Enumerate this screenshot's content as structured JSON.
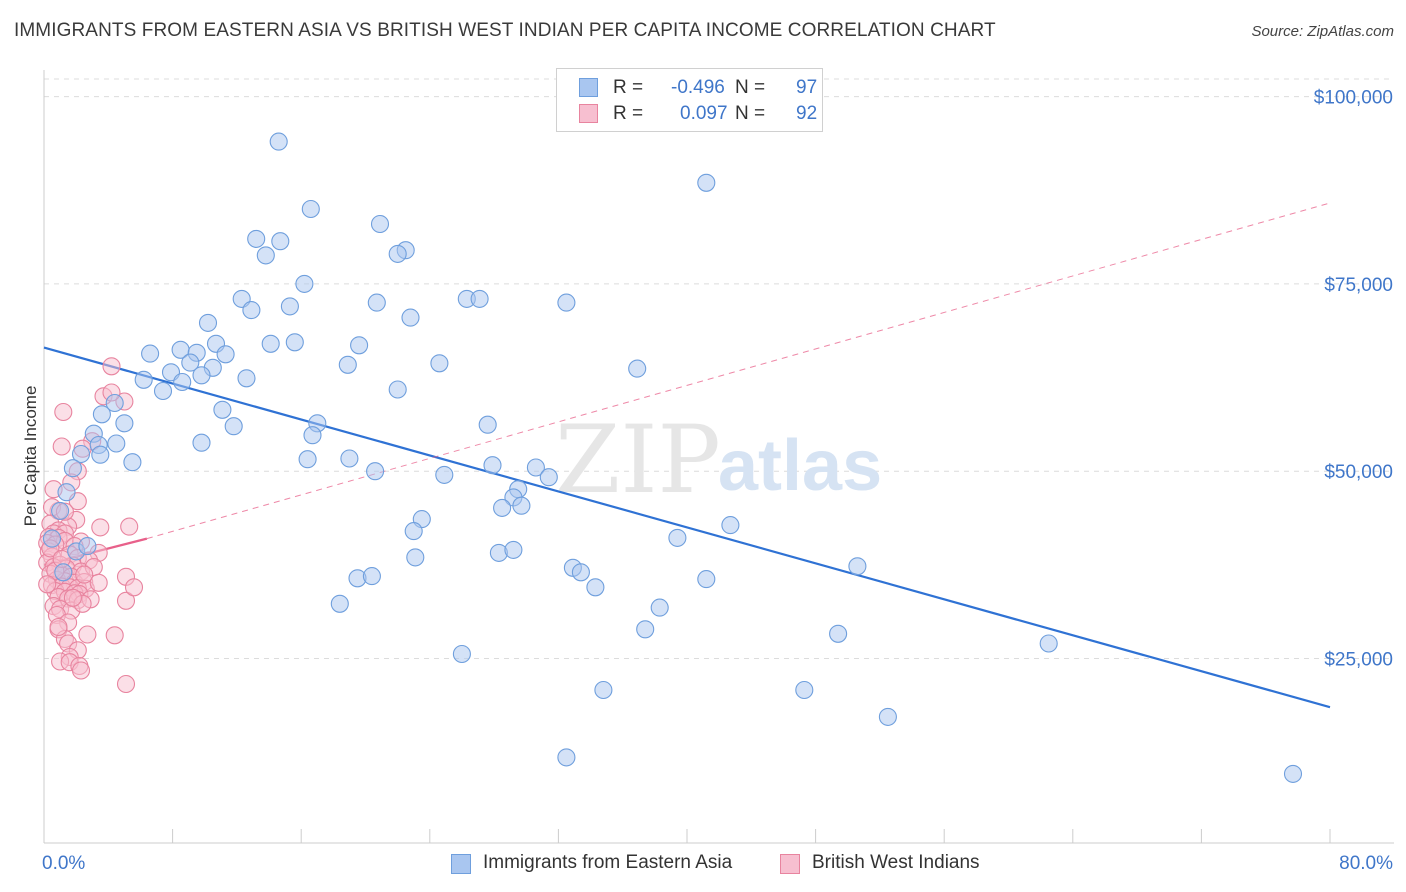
{
  "title": "IMMIGRANTS FROM EASTERN ASIA VS BRITISH WEST INDIAN PER CAPITA INCOME CORRELATION CHART",
  "source": "Source: ZipAtlas.com",
  "watermark": {
    "zip": "ZIP",
    "atlas": "atlas"
  },
  "legend": {
    "rows": [
      {
        "r_label": "R =",
        "r_value": "-0.496",
        "n_label": "N =",
        "n_value": "97",
        "color": "#a9c6f0",
        "border": "#6f9fdd"
      },
      {
        "r_label": "R =",
        "r_value": "0.097",
        "n_label": "N =",
        "n_value": "92",
        "color": "#f7bfd0",
        "border": "#e8849f"
      }
    ]
  },
  "bottom_legend": {
    "items": [
      {
        "label": "Immigrants from Eastern Asia",
        "color": "#a9c6f0",
        "border": "#6f9fdd"
      },
      {
        "label": "British West Indians",
        "color": "#f7bfd0",
        "border": "#e8849f"
      }
    ]
  },
  "chart_data": {
    "type": "scatter",
    "xlabel": "",
    "ylabel": "Per Capita Income",
    "xlim": [
      0,
      80
    ],
    "ylim": [
      0,
      105000
    ],
    "x_tick_labels": [
      "0.0%",
      "80.0%"
    ],
    "y_ticks": [
      {
        "value": 25000,
        "label": "$25,000"
      },
      {
        "value": 50000,
        "label": "$50,000"
      },
      {
        "value": 75000,
        "label": "$75,000"
      },
      {
        "value": 100000,
        "label": "$100,000"
      }
    ],
    "grid": true,
    "colors": {
      "blue_stroke": "#6f9fdd",
      "blue_fill": "#a9c6f0",
      "blue_line": "#2f72d4",
      "pink_stroke": "#e8849f",
      "pink_fill": "#f7bfd0",
      "pink_line": "#e8608a"
    },
    "series": [
      {
        "name": "Immigrants from Eastern Asia",
        "trend": {
          "x1": 0,
          "y1": 66500,
          "x2": 80,
          "y2": 18500,
          "style": "solid"
        },
        "points": [
          [
            14.6,
            94000
          ],
          [
            16.6,
            85000
          ],
          [
            41.2,
            88500
          ],
          [
            20.9,
            83000
          ],
          [
            13.2,
            81000
          ],
          [
            14.7,
            80700
          ],
          [
            22.5,
            79500
          ],
          [
            22.0,
            79000
          ],
          [
            13.8,
            78800
          ],
          [
            16.2,
            75000
          ],
          [
            12.3,
            73000
          ],
          [
            15.3,
            72000
          ],
          [
            20.7,
            72500
          ],
          [
            26.3,
            73000
          ],
          [
            27.1,
            73000
          ],
          [
            32.5,
            72500
          ],
          [
            12.9,
            71500
          ],
          [
            22.8,
            70500
          ],
          [
            10.2,
            69800
          ],
          [
            8.5,
            66200
          ],
          [
            10.7,
            67000
          ],
          [
            14.1,
            67000
          ],
          [
            15.6,
            67200
          ],
          [
            19.6,
            66800
          ],
          [
            6.6,
            65700
          ],
          [
            9.5,
            65800
          ],
          [
            11.3,
            65600
          ],
          [
            9.1,
            64500
          ],
          [
            10.5,
            63800
          ],
          [
            18.9,
            64200
          ],
          [
            24.6,
            64400
          ],
          [
            36.9,
            63700
          ],
          [
            7.9,
            63200
          ],
          [
            9.8,
            62800
          ],
          [
            6.2,
            62200
          ],
          [
            8.6,
            61900
          ],
          [
            12.6,
            62400
          ],
          [
            7.4,
            60700
          ],
          [
            22.0,
            60900
          ],
          [
            11.1,
            58200
          ],
          [
            4.4,
            59100
          ],
          [
            3.6,
            57600
          ],
          [
            5.0,
            56400
          ],
          [
            17.0,
            56400
          ],
          [
            27.6,
            56200
          ],
          [
            11.8,
            56000
          ],
          [
            3.1,
            55000
          ],
          [
            16.7,
            54800
          ],
          [
            4.5,
            53700
          ],
          [
            9.8,
            53800
          ],
          [
            3.4,
            53500
          ],
          [
            2.3,
            52300
          ],
          [
            3.5,
            52200
          ],
          [
            16.4,
            51600
          ],
          [
            5.5,
            51200
          ],
          [
            19.0,
            51700
          ],
          [
            1.8,
            50400
          ],
          [
            27.9,
            50800
          ],
          [
            30.6,
            50500
          ],
          [
            20.6,
            50000
          ],
          [
            24.9,
            49500
          ],
          [
            31.4,
            49200
          ],
          [
            29.5,
            47600
          ],
          [
            1.4,
            47200
          ],
          [
            29.2,
            46500
          ],
          [
            28.5,
            45100
          ],
          [
            29.7,
            45400
          ],
          [
            1.0,
            44700
          ],
          [
            23.5,
            43600
          ],
          [
            42.7,
            42800
          ],
          [
            23.0,
            42000
          ],
          [
            39.4,
            41100
          ],
          [
            2.0,
            39300
          ],
          [
            28.3,
            39100
          ],
          [
            29.2,
            39500
          ],
          [
            23.1,
            38500
          ],
          [
            32.9,
            37100
          ],
          [
            33.4,
            36500
          ],
          [
            50.6,
            37300
          ],
          [
            19.5,
            35700
          ],
          [
            20.4,
            36000
          ],
          [
            34.3,
            34500
          ],
          [
            41.2,
            35600
          ],
          [
            18.4,
            32300
          ],
          [
            38.3,
            31800
          ],
          [
            37.4,
            28900
          ],
          [
            49.4,
            28300
          ],
          [
            26.0,
            25600
          ],
          [
            62.5,
            27000
          ],
          [
            34.8,
            20800
          ],
          [
            47.3,
            20800
          ],
          [
            52.5,
            17200
          ],
          [
            32.5,
            11800
          ],
          [
            77.7,
            9600
          ],
          [
            0.5,
            41000
          ],
          [
            2.7,
            40000
          ],
          [
            1.2,
            36500
          ]
        ]
      },
      {
        "name": "British West Indians",
        "trend": {
          "x1": 0,
          "y1": 37500,
          "x2": 6.4,
          "y2": 41000,
          "style": "solid"
        },
        "trend_extension": {
          "x1": 6.4,
          "y1": 41000,
          "x2": 80,
          "y2": 85800,
          "style": "dashed"
        },
        "points": [
          [
            4.2,
            64000
          ],
          [
            3.7,
            60000
          ],
          [
            5.0,
            59300
          ],
          [
            4.2,
            60500
          ],
          [
            1.2,
            57900
          ],
          [
            3.0,
            54000
          ],
          [
            1.1,
            53300
          ],
          [
            2.4,
            53000
          ],
          [
            2.1,
            50000
          ],
          [
            1.7,
            48500
          ],
          [
            0.6,
            47600
          ],
          [
            2.1,
            46000
          ],
          [
            0.9,
            44700
          ],
          [
            0.5,
            45200
          ],
          [
            2.0,
            43500
          ],
          [
            0.4,
            43000
          ],
          [
            1.5,
            42600
          ],
          [
            0.9,
            42100
          ],
          [
            0.6,
            41700
          ],
          [
            1.3,
            41700
          ],
          [
            3.5,
            42500
          ],
          [
            5.3,
            42600
          ],
          [
            0.3,
            41200
          ],
          [
            0.9,
            41100
          ],
          [
            1.3,
            40700
          ],
          [
            2.3,
            40600
          ],
          [
            0.2,
            40400
          ],
          [
            0.7,
            40200
          ],
          [
            1.9,
            40000
          ],
          [
            0.3,
            39300
          ],
          [
            1.6,
            38900
          ],
          [
            3.4,
            39100
          ],
          [
            0.5,
            38600
          ],
          [
            2.1,
            38400
          ],
          [
            2.8,
            38100
          ],
          [
            0.2,
            37800
          ],
          [
            1.0,
            37500
          ],
          [
            1.8,
            37400
          ],
          [
            0.6,
            37200
          ],
          [
            1.4,
            37000
          ],
          [
            2.3,
            36600
          ],
          [
            3.1,
            37200
          ],
          [
            0.4,
            36300
          ],
          [
            1.1,
            36100
          ],
          [
            1.7,
            35900
          ],
          [
            5.1,
            35900
          ],
          [
            0.8,
            35500
          ],
          [
            1.3,
            35300
          ],
          [
            1.9,
            35100
          ],
          [
            2.5,
            35200
          ],
          [
            0.5,
            34800
          ],
          [
            1.1,
            34600
          ],
          [
            1.6,
            34500
          ],
          [
            2.1,
            34400
          ],
          [
            2.6,
            34300
          ],
          [
            0.7,
            34000
          ],
          [
            1.3,
            33900
          ],
          [
            1.9,
            33700
          ],
          [
            2.2,
            33600
          ],
          [
            0.9,
            33200
          ],
          [
            1.5,
            33000
          ],
          [
            2.1,
            32800
          ],
          [
            2.9,
            32900
          ],
          [
            5.1,
            32700
          ],
          [
            0.6,
            32000
          ],
          [
            1.0,
            31600
          ],
          [
            1.7,
            31400
          ],
          [
            2.4,
            32300
          ],
          [
            0.8,
            30800
          ],
          [
            5.6,
            34500
          ],
          [
            3.4,
            35100
          ],
          [
            1.5,
            29800
          ],
          [
            0.9,
            28900
          ],
          [
            2.7,
            28200
          ],
          [
            4.4,
            28100
          ],
          [
            1.3,
            27600
          ],
          [
            1.5,
            27000
          ],
          [
            2.1,
            26100
          ],
          [
            1.6,
            25200
          ],
          [
            1.0,
            24600
          ],
          [
            1.6,
            24500
          ],
          [
            2.2,
            24000
          ],
          [
            2.3,
            23400
          ],
          [
            5.1,
            21600
          ],
          [
            1.3,
            44600
          ],
          [
            0.4,
            39700
          ],
          [
            0.7,
            36700
          ],
          [
            2.5,
            36200
          ],
          [
            0.9,
            29200
          ],
          [
            1.8,
            33100
          ],
          [
            1.1,
            38300
          ],
          [
            0.2,
            34900
          ]
        ]
      }
    ]
  }
}
